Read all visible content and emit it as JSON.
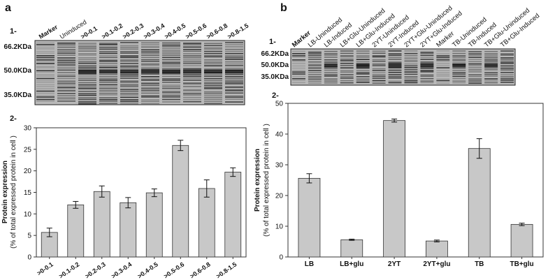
{
  "panels": [
    {
      "label": "a",
      "gel_step": "1-",
      "chart_step": "2-",
      "lanes": [
        "Marker",
        "Uninduced",
        ">0-0.1",
        ">0.1-0.2",
        ">0.2-0.3",
        ">0.3-0.4",
        ">0.4-0.5",
        ">0.5-0.6",
        ">0.6-0.8",
        ">0.8-1.5"
      ],
      "markers": [
        "66.2KDa",
        "50.0KDa",
        "35.0KDa"
      ]
    },
    {
      "label": "b",
      "gel_step": "1-",
      "chart_step": "2-",
      "lanes": [
        "Marker",
        "LB-Uninduced",
        "LB-Induced",
        "LB+Glu-Uninduced",
        "LB+Glu-Induced",
        "2YT-Uninduced",
        "2YT-Induced",
        "2YT+Glu-Uninduced",
        "2YT+Glu-Induced",
        "Marker",
        "TB-Uninduced",
        "TB-Induced",
        "TB+Glu-Uninduced",
        "TB+Glu-Induced"
      ],
      "markers": [
        "66.2KDa",
        "50.0KDa",
        "35.0KDa"
      ]
    }
  ],
  "chart_data": [
    {
      "type": "bar",
      "ylabel": "Protein expression",
      "ylabel_sub": "(% of total expressed protein in cell )",
      "categories": [
        ">0-0.1",
        ">0.1-0.2",
        ">0.2-0.3",
        ">0.3-0.4",
        ">0.4-0.5",
        ">0.5-0.6",
        ">0.6-0.8",
        ">0.8-1.5"
      ],
      "values": [
        5.7,
        12.1,
        15.2,
        12.6,
        14.9,
        25.9,
        15.9,
        19.7
      ],
      "errors": [
        1.0,
        0.8,
        1.3,
        1.2,
        0.9,
        1.2,
        2.0,
        1.0
      ],
      "color": "#c8c8c8",
      "ylim": [
        0,
        30
      ],
      "yticks": [
        0,
        5,
        10,
        15,
        20,
        25,
        30
      ]
    },
    {
      "type": "bar",
      "ylabel": "Protein expression",
      "ylabel_sub": "(% of total expressed protein in cell )",
      "categories": [
        "LB",
        "LB+glu",
        "2YT",
        "2YT+glu",
        "TB",
        "TB+glu"
      ],
      "values": [
        25.6,
        5.6,
        44.4,
        5.2,
        35.3,
        10.6
      ],
      "errors": [
        1.5,
        0.2,
        0.5,
        0.3,
        3.2,
        0.4
      ],
      "color": "#c8c8c8",
      "ylim": [
        0,
        50
      ],
      "yticks": [
        0,
        10,
        20,
        30,
        40,
        50
      ]
    }
  ]
}
